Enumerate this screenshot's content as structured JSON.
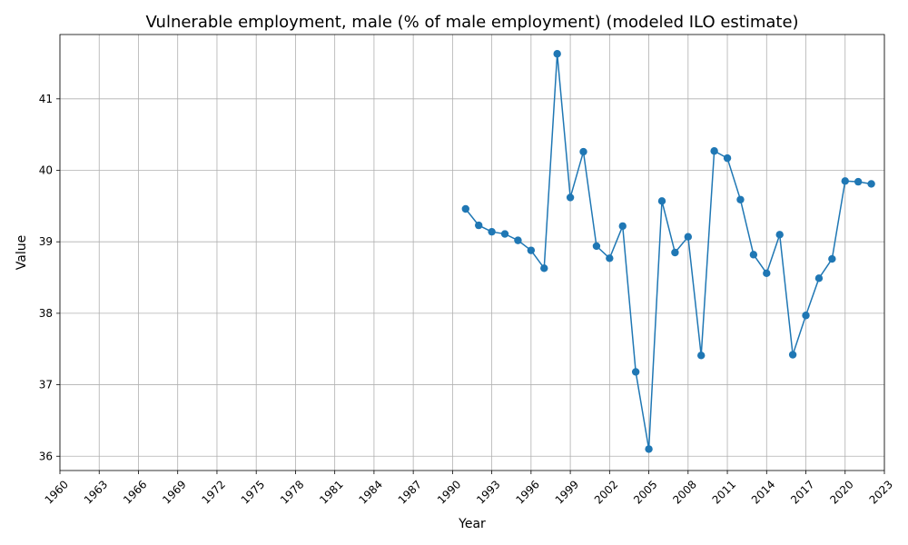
{
  "chart_data": {
    "type": "line",
    "title": "Vulnerable employment, male (% of male employment) (modeled ILO estimate)",
    "xlabel": "Year",
    "ylabel": "Value",
    "xlim": [
      1960,
      2023
    ],
    "ylim": [
      35.8,
      41.9
    ],
    "x_ticks": [
      1960,
      1963,
      1966,
      1969,
      1972,
      1975,
      1978,
      1981,
      1984,
      1987,
      1990,
      1993,
      1996,
      1999,
      2002,
      2005,
      2008,
      2011,
      2014,
      2017,
      2020,
      2023
    ],
    "y_ticks": [
      36,
      37,
      38,
      39,
      40,
      41
    ],
    "grid": true,
    "legend": "none",
    "series_color": "#1f77b4",
    "series": [
      {
        "x": [
          1991,
          1992,
          1993,
          1994,
          1995,
          1996,
          1997,
          1998,
          1999,
          2000,
          2001,
          2002,
          2003,
          2004,
          2005,
          2006,
          2007,
          2008,
          2009,
          2010,
          2011,
          2012,
          2013,
          2014,
          2015,
          2016,
          2017,
          2018,
          2019,
          2020,
          2021,
          2022
        ],
        "values": [
          39.46,
          39.23,
          39.14,
          39.11,
          39.02,
          38.88,
          38.63,
          41.63,
          39.62,
          40.26,
          38.94,
          38.77,
          39.22,
          37.18,
          36.1,
          39.57,
          38.85,
          39.07,
          37.41,
          40.27,
          40.17,
          39.59,
          38.82,
          38.56,
          39.1,
          37.42,
          37.97,
          38.49,
          38.76,
          39.85,
          39.84,
          39.81
        ]
      }
    ]
  }
}
